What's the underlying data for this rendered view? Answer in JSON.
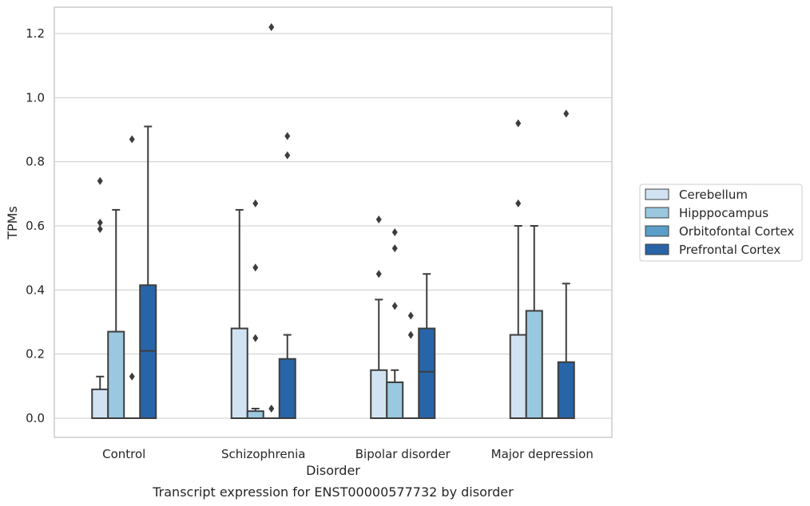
{
  "chart_data": {
    "type": "box",
    "title": "Transcript expression for ENST00000577732 by disorder",
    "xlabel": "Disorder",
    "ylabel": "TPMs",
    "categories": [
      "Control",
      "Schizophrenia",
      "Bipolar disorder",
      "Major depression"
    ],
    "ylim": [
      -0.06,
      1.28
    ],
    "yticks": [
      "0.0",
      "0.2",
      "0.4",
      "0.6",
      "0.8",
      "1.0",
      "1.2"
    ],
    "grid": "horizontal",
    "legend_position": "right",
    "series": [
      {
        "name": "Cerebellum",
        "color": "#d1e2f2",
        "boxes": [
          {
            "q1": 0.0,
            "median": 0.0,
            "q3": 0.09,
            "whisker_low": 0.0,
            "whisker_high": 0.13,
            "outliers": [
              0.59,
              0.61,
              0.74
            ]
          },
          {
            "q1": 0.0,
            "median": 0.0,
            "q3": 0.28,
            "whisker_low": 0.0,
            "whisker_high": 0.65,
            "outliers": []
          },
          {
            "q1": 0.0,
            "median": 0.0,
            "q3": 0.15,
            "whisker_low": 0.0,
            "whisker_high": 0.37,
            "outliers": [
              0.45,
              0.62
            ]
          },
          {
            "q1": 0.0,
            "median": 0.0,
            "q3": 0.26,
            "whisker_low": 0.0,
            "whisker_high": 0.6,
            "outliers": [
              0.67,
              0.92
            ]
          }
        ]
      },
      {
        "name": "Hipppocampus",
        "color": "#9ac8e0",
        "boxes": [
          {
            "q1": 0.0,
            "median": 0.0,
            "q3": 0.27,
            "whisker_low": 0.0,
            "whisker_high": 0.65,
            "outliers": []
          },
          {
            "q1": 0.0,
            "median": 0.0,
            "q3": 0.022,
            "whisker_low": 0.0,
            "whisker_high": 0.03,
            "outliers": [
              0.25,
              0.47,
              0.67
            ]
          },
          {
            "q1": 0.0,
            "median": 0.0,
            "q3": 0.112,
            "whisker_low": 0.0,
            "whisker_high": 0.15,
            "outliers": [
              0.35,
              0.53,
              0.58
            ]
          },
          {
            "q1": 0.0,
            "median": 0.0,
            "q3": 0.335,
            "whisker_low": 0.0,
            "whisker_high": 0.6,
            "outliers": []
          }
        ]
      },
      {
        "name": "Orbitofontal Cortex",
        "color": "#5a9ec9",
        "boxes": [
          {
            "q1": 0.0,
            "median": 0.0,
            "q3": 0.0,
            "whisker_low": 0.0,
            "whisker_high": 0.0,
            "outliers": [
              0.13,
              0.87
            ]
          },
          {
            "q1": 0.0,
            "median": 0.0,
            "q3": 0.0,
            "whisker_low": 0.0,
            "whisker_high": 0.0,
            "outliers": [
              0.03,
              1.22
            ]
          },
          {
            "q1": 0.0,
            "median": 0.0,
            "q3": 0.0,
            "whisker_low": 0.0,
            "whisker_high": 0.0,
            "outliers": [
              0.26,
              0.32
            ]
          },
          {
            "q1": 0.0,
            "median": 0.0,
            "q3": 0.0,
            "whisker_low": 0.0,
            "whisker_high": 0.0,
            "outliers": []
          }
        ]
      },
      {
        "name": "Prefrontal Cortex",
        "color": "#2765a8",
        "boxes": [
          {
            "q1": 0.0,
            "median": 0.21,
            "q3": 0.415,
            "whisker_low": 0.0,
            "whisker_high": 0.91,
            "outliers": []
          },
          {
            "q1": 0.0,
            "median": 0.0,
            "q3": 0.185,
            "whisker_low": 0.0,
            "whisker_high": 0.26,
            "outliers": [
              0.82,
              0.88
            ]
          },
          {
            "q1": 0.0,
            "median": 0.145,
            "q3": 0.28,
            "whisker_low": 0.0,
            "whisker_high": 0.45,
            "outliers": []
          },
          {
            "q1": 0.0,
            "median": 0.0,
            "q3": 0.175,
            "whisker_low": 0.0,
            "whisker_high": 0.42,
            "outliers": [
              0.95
            ]
          }
        ]
      }
    ]
  }
}
